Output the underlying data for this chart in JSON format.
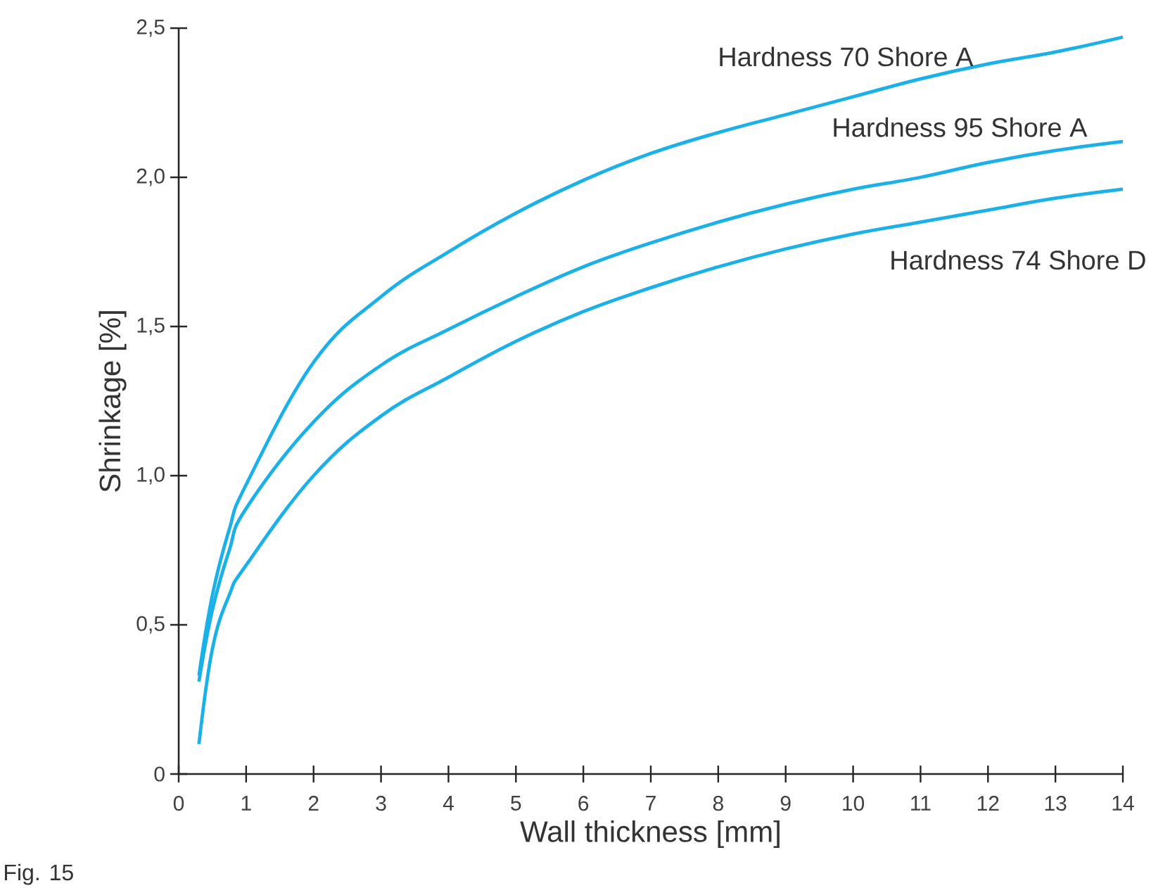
{
  "chart_data": {
    "type": "line",
    "xlabel": "Wall thickness [mm]",
    "ylabel": "Shrinkage [%]",
    "xlim": [
      0,
      14
    ],
    "ylim": [
      0,
      2.5
    ],
    "xticks": [
      0,
      1,
      2,
      3,
      4,
      5,
      6,
      7,
      8,
      9,
      10,
      11,
      12,
      13,
      14
    ],
    "yticks": [
      0,
      {
        "value": 0.5,
        "label": "0,5"
      },
      {
        "value": 1,
        "label": "1,0"
      },
      {
        "value": 1.5,
        "label": "1,5"
      },
      {
        "value": 2,
        "label": "2,0"
      },
      {
        "value": 2.5,
        "label": "2,5"
      }
    ],
    "marker": "none",
    "line_style": "solid",
    "x": [
      0.3,
      0.5,
      0.75,
      1,
      2,
      3,
      4,
      5,
      6,
      7,
      8,
      9,
      10,
      11,
      12,
      13,
      14
    ],
    "series": [
      {
        "name": "Hardness 70 Shore A",
        "color": "#1ab0e8",
        "values": [
          0.33,
          0.6,
          0.82,
          0.97,
          1.38,
          1.6,
          1.75,
          1.88,
          1.99,
          2.08,
          2.15,
          2.21,
          2.27,
          2.33,
          2.38,
          2.42,
          2.47
        ]
      },
      {
        "name": "Hardness 95 Shore A",
        "color": "#1ab0e8",
        "values": [
          0.31,
          0.55,
          0.75,
          0.89,
          1.18,
          1.37,
          1.49,
          1.6,
          1.7,
          1.78,
          1.85,
          1.91,
          1.96,
          2.0,
          2.05,
          2.09,
          2.12
        ]
      },
      {
        "name": "Hardness 74 Shore D",
        "color": "#1ab0e8",
        "values": [
          0.1,
          0.42,
          0.6,
          0.7,
          1.0,
          1.2,
          1.33,
          1.45,
          1.55,
          1.63,
          1.7,
          1.76,
          1.81,
          1.85,
          1.89,
          1.93,
          1.96
        ]
      }
    ],
    "annotations": [
      "Fig. 15"
    ]
  }
}
